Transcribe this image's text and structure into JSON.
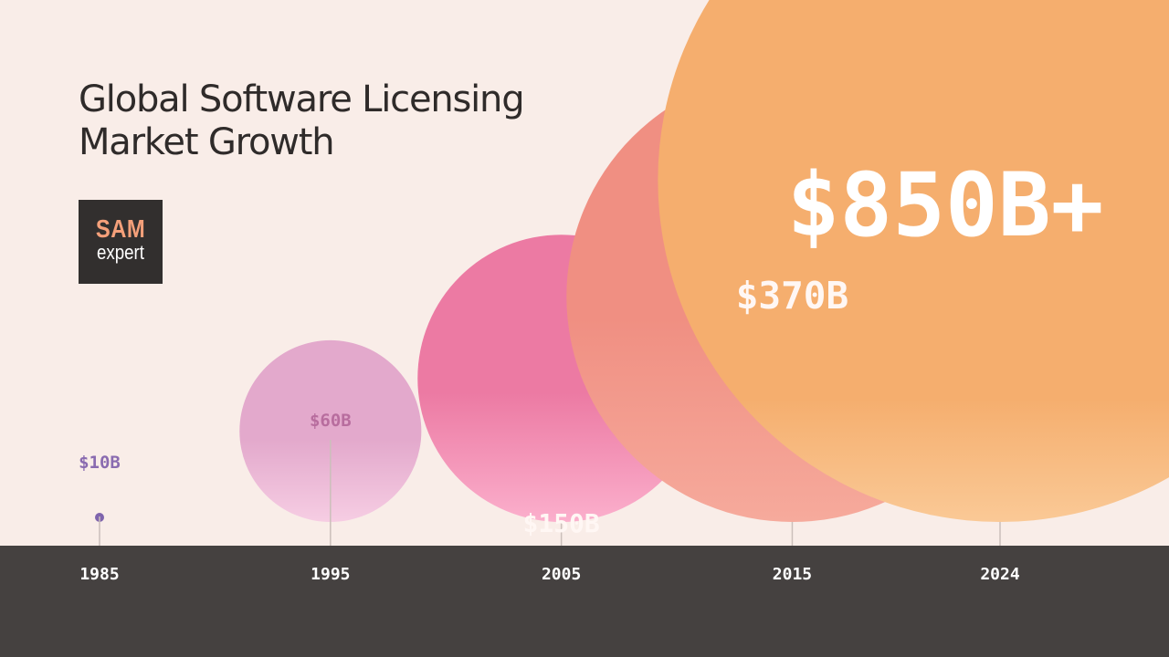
{
  "title_lines": [
    "Global Software Licensing",
    "Market Growth"
  ],
  "logo": {
    "line1": "SAM",
    "line2": "expert"
  },
  "chart_data": {
    "type": "bubble-timeline",
    "title": "Global Software Licensing Market Growth",
    "x": [
      1985,
      1995,
      2005,
      2015,
      2024
    ],
    "categories": [
      "1985",
      "1995",
      "2005",
      "2015",
      "2024"
    ],
    "values": [
      10,
      60,
      150,
      370,
      850
    ],
    "value_labels": [
      "$10B",
      "$60B",
      "$150B",
      "$370B",
      "$850B+"
    ],
    "unit": "billion USD",
    "colors": {
      "background": "#f9ede8",
      "axis_band": "#454140",
      "tick_label": "#ffffff",
      "label_1985": "#8a6bb0",
      "label_1995": "#b86d9e",
      "dot_1985": "#7f64ad",
      "bubble_1995": [
        "#e3a9cc",
        "#f6cde3"
      ],
      "bubble_2005": [
        "#ec7aa3",
        "#fbafcc"
      ],
      "bubble_2015": [
        "#f08f82",
        "#f6aa9c"
      ],
      "bubble_2024": [
        "#f5ae6e",
        "#fac996"
      ]
    }
  }
}
